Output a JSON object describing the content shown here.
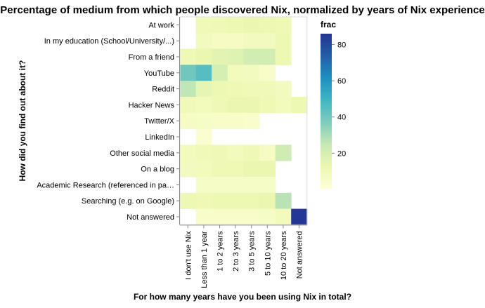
{
  "chart_data": {
    "type": "heatmap",
    "title": "Percentage of medium from which people discovered Nix, normalized by years of Nix experience",
    "xlabel": "For how many years have you been using Nix in total?",
    "ylabel": "How did you find out about it?",
    "x_categories": [
      "I don't use Nix",
      "Less than 1 year",
      "1 to 2 years",
      "2 to 3 years",
      "3 to 5 years",
      "5 to 10 years",
      "10 to 20 years",
      "Not answered"
    ],
    "y_categories": [
      "At work",
      "In my education (School/University/...)",
      "From a friend",
      "YouTube",
      "Reddit",
      "Hacker News",
      "Twitter/X",
      "LinkedIn",
      "Other social media",
      "On a blog",
      "Academic Research (referenced in pa…",
      "Searching (e.g. on Google)",
      "Not answered"
    ],
    "y_tick_labels": [
      "At work",
      "In my education (School/University/...)",
      "From a friend",
      "YouTube",
      "Reddit",
      "Hacker News",
      "Twitter/X",
      "LinkedIn",
      "Other social media",
      "On a blog",
      "Academic Research (referenced in pa…",
      "Searching (e.g. on Google)",
      "Not answered"
    ],
    "values": [
      [
        null,
        10,
        11,
        12,
        13,
        12,
        11,
        null
      ],
      [
        null,
        8,
        7,
        7,
        8,
        8,
        12,
        null
      ],
      [
        11,
        13,
        16,
        17,
        21,
        21,
        12,
        null
      ],
      [
        40,
        45,
        20,
        9,
        8,
        5,
        null,
        null
      ],
      [
        26,
        15,
        12,
        11,
        10,
        10,
        8,
        null
      ],
      [
        10,
        9,
        11,
        13,
        13,
        11,
        9,
        12
      ],
      [
        7,
        6,
        5,
        5,
        4,
        null,
        null,
        null
      ],
      [
        null,
        3,
        null,
        null,
        null,
        null,
        null,
        null
      ],
      [
        9,
        10,
        11,
        9,
        11,
        7,
        22,
        null
      ],
      [
        8,
        9,
        11,
        11,
        13,
        13,
        null,
        null
      ],
      [
        null,
        6,
        6,
        6,
        6,
        6,
        null,
        null
      ],
      [
        12,
        11,
        12,
        12,
        12,
        13,
        27,
        null
      ],
      [
        null,
        5,
        5,
        5,
        5,
        6,
        9,
        85
      ]
    ],
    "legend": {
      "title": "frac",
      "ticks": [
        20,
        40,
        60,
        80
      ],
      "domain": [
        0,
        86
      ],
      "position": "right"
    },
    "colorscale": [
      "#ffffd9",
      "#edf8b1",
      "#c7e9b4",
      "#7fcdbb",
      "#41b6c4",
      "#1d91c0",
      "#225ea8",
      "#253494"
    ]
  }
}
